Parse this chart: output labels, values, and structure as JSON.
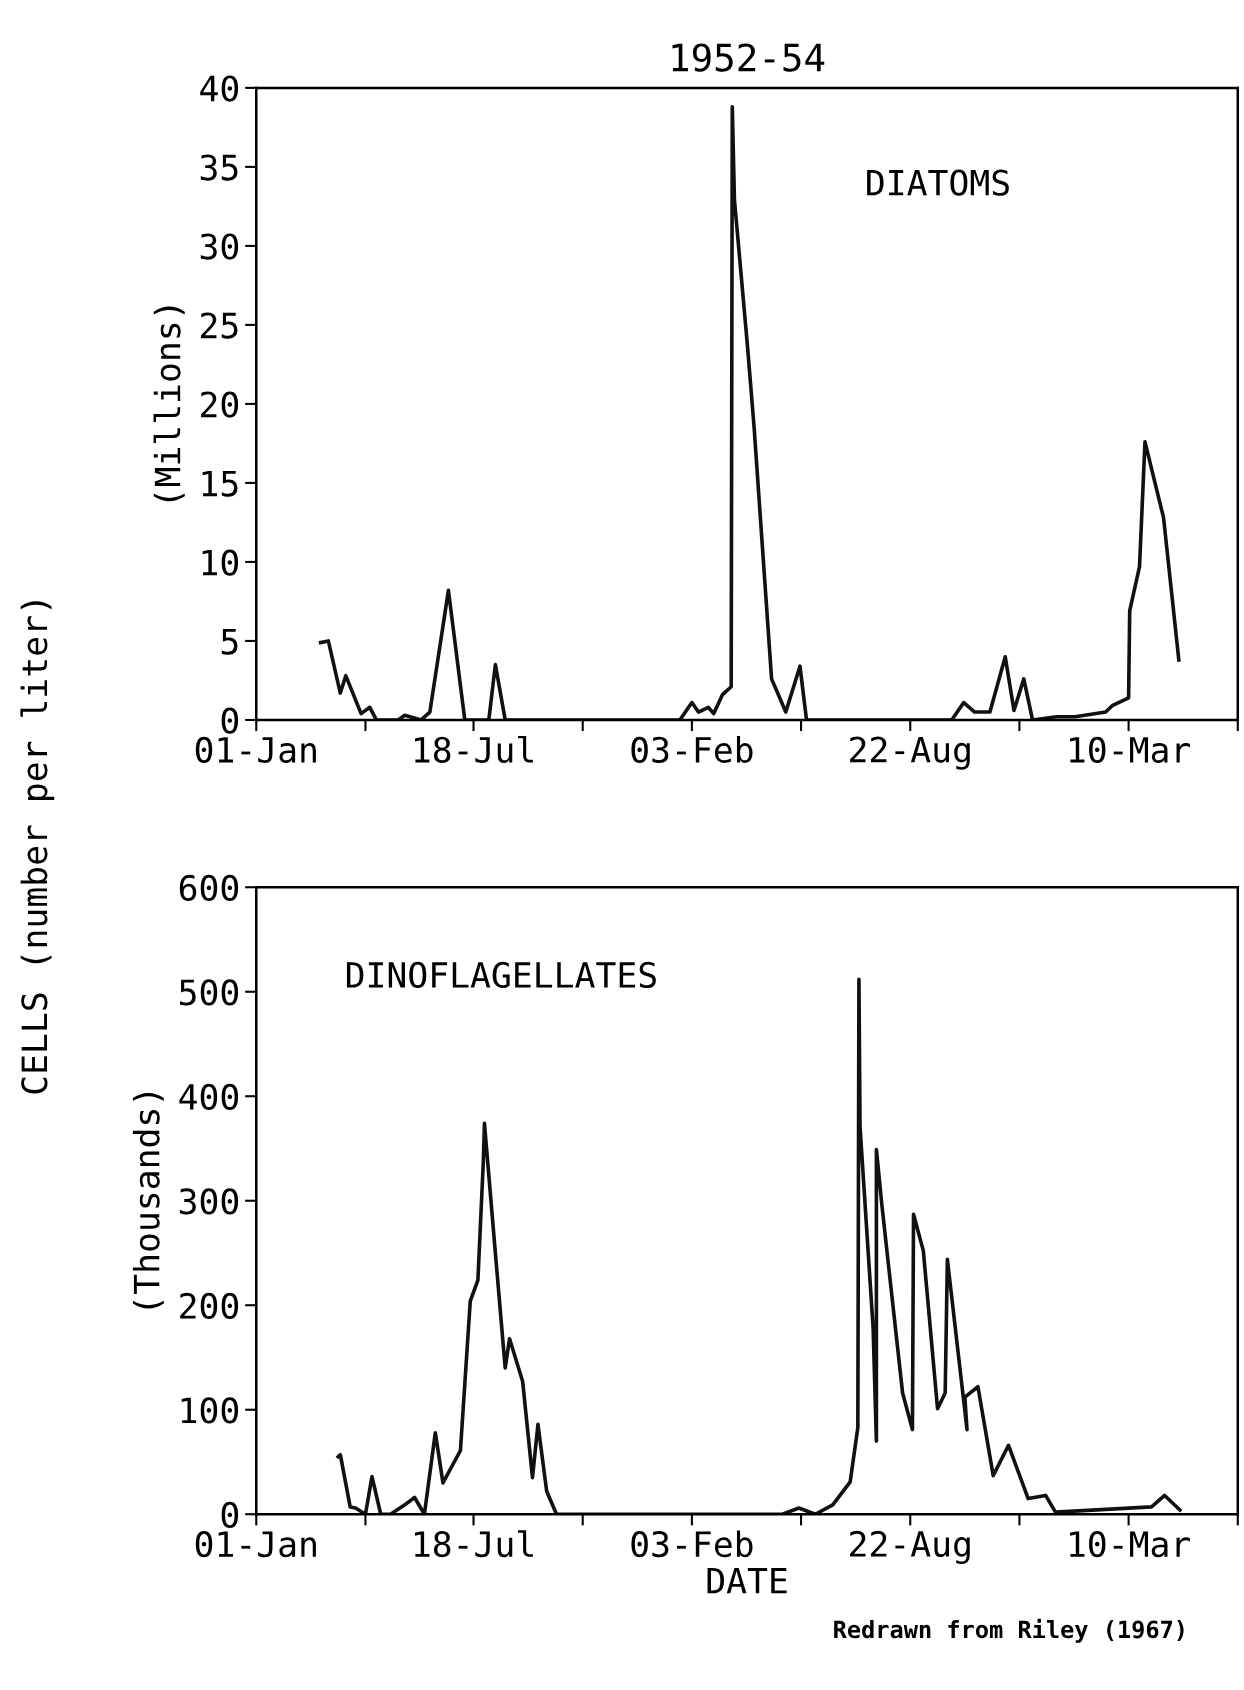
{
  "chart_data": [
    {
      "type": "line",
      "title": "1952-54",
      "ylabel": "(Millions)",
      "annotations": [
        "DIATOMS",
        "CELLS (number per liter)"
      ],
      "series": [
        {
          "color": "#111111",
          "x": [
            "1952-02-29",
            "1952-03-07",
            "1952-03-18",
            "1952-03-23",
            "1952-04-06",
            "1952-04-14",
            "1952-04-20",
            "1952-05-10",
            "1952-05-16",
            "1952-05-31",
            "1952-06-08",
            "1952-06-25",
            "1952-07-10",
            "1952-08-01",
            "1952-08-07",
            "1952-08-16",
            "1953-01-23",
            "1953-02-03",
            "1953-02-09",
            "1953-02-18",
            "1953-02-23",
            "1953-03-03",
            "1953-03-11",
            "1953-03-12",
            "1953-03-14",
            "1953-03-26",
            "1953-04-01",
            "1953-04-17",
            "1953-04-30",
            "1953-05-13",
            "1953-05-19",
            "1953-09-29",
            "1953-10-10",
            "1953-10-20",
            "1953-11-03",
            "1953-11-17",
            "1953-11-25",
            "1953-12-04",
            "1953-12-12",
            "1954-01-03",
            "1954-01-20",
            "1954-02-17",
            "1954-02-23",
            "1954-03-10",
            "1954-03-11",
            "1954-03-20",
            "1954-03-25",
            "1954-04-11",
            "1954-04-25"
          ],
          "values": [
            4.9,
            5.0,
            1.7,
            2.8,
            0.4,
            0.8,
            0,
            0,
            0.3,
            0,
            0.5,
            8.2,
            0,
            0,
            3.5,
            0,
            0,
            1.1,
            0.5,
            0.8,
            0.4,
            1.6,
            2.1,
            38.8,
            32.9,
            23.6,
            18.5,
            2.6,
            0.5,
            3.4,
            0,
            0,
            1.1,
            0.5,
            0.5,
            4.0,
            0.6,
            2.6,
            0,
            0.2,
            0.2,
            0.5,
            0.9,
            1.4,
            6.9,
            9.7,
            17.6,
            12.8,
            3.8
          ]
        }
      ],
      "xlim": [
        "1952-01-01",
        "1954-06-18"
      ],
      "xticks": [
        {
          "value": "1952-01-01",
          "label": "01-Jan"
        },
        {
          "value": "1952-04-10",
          "label": null
        },
        {
          "value": "1952-07-18",
          "label": "18-Jul"
        },
        {
          "value": "1952-10-26",
          "label": null
        },
        {
          "value": "1953-02-03",
          "label": "03-Feb"
        },
        {
          "value": "1953-05-14",
          "label": null
        },
        {
          "value": "1953-08-22",
          "label": "22-Aug"
        },
        {
          "value": "1953-11-30",
          "label": null
        },
        {
          "value": "1954-03-10",
          "label": "10-Mar"
        },
        {
          "value": "1954-06-18",
          "label": null
        }
      ],
      "ylim": [
        0,
        40
      ],
      "yticks": [
        0,
        5,
        10,
        15,
        20,
        25,
        30,
        35,
        40
      ],
      "line_style": "solid"
    },
    {
      "type": "line",
      "xlabel": "DATE",
      "ylabel": "(Thousands)",
      "annotations": [
        "DINOFLAGELLATES",
        "Redrawn from Riley (1967)"
      ],
      "series": [
        {
          "color": "#111111",
          "x": [
            "1952-03-16",
            "1952-03-18",
            "1952-03-27",
            "1952-04-01",
            "1952-04-10",
            "1952-04-16",
            "1952-04-24",
            "1952-05-03",
            "1952-05-16",
            "1952-05-25",
            "1952-06-03",
            "1952-06-13",
            "1952-06-20",
            "1952-07-06",
            "1952-07-15",
            "1952-07-22",
            "1952-07-27",
            "1952-07-28",
            "1952-08-07",
            "1952-08-16",
            "1952-08-20",
            "1952-09-01",
            "1952-09-10",
            "1952-09-15",
            "1952-09-23",
            "1952-10-02",
            "1953-04-27",
            "1953-05-12",
            "1953-05-27",
            "1953-06-12",
            "1953-06-28",
            "1953-07-05",
            "1953-07-06",
            "1953-07-07",
            "1953-07-19",
            "1953-07-22",
            "1953-07-22",
            "1953-07-27",
            "1953-08-15",
            "1953-08-24",
            "1953-08-25",
            "1953-09-03",
            "1953-09-16",
            "1953-09-23",
            "1953-09-25",
            "1953-10-13",
            "1953-10-11",
            "1953-10-23",
            "1953-11-06",
            "1953-11-20",
            "1953-12-08",
            "1953-12-24",
            "1954-01-02",
            "1954-03-31",
            "1954-04-12",
            "1954-04-26"
          ],
          "values": [
            55,
            57,
            7,
            6,
            0,
            36,
            0,
            0,
            9,
            16,
            0,
            78,
            30,
            61,
            204,
            224,
            338,
            374,
            250,
            140,
            168,
            127,
            35,
            86,
            22,
            0,
            0,
            6,
            0,
            9,
            31,
            83,
            512,
            371,
            178,
            70,
            349,
            296,
            116,
            81,
            287,
            252,
            101,
            116,
            244,
            81,
            112,
            122,
            37,
            66,
            15,
            18,
            2,
            7,
            18,
            4
          ]
        }
      ],
      "xlim": [
        "1952-01-01",
        "1954-06-18"
      ],
      "xticks": [
        {
          "value": "1952-01-01",
          "label": "01-Jan"
        },
        {
          "value": "1952-04-10",
          "label": null
        },
        {
          "value": "1952-07-18",
          "label": "18-Jul"
        },
        {
          "value": "1952-10-26",
          "label": null
        },
        {
          "value": "1953-02-03",
          "label": "03-Feb"
        },
        {
          "value": "1953-05-14",
          "label": null
        },
        {
          "value": "1953-08-22",
          "label": "22-Aug"
        },
        {
          "value": "1953-11-30",
          "label": null
        },
        {
          "value": "1954-03-10",
          "label": "10-Mar"
        },
        {
          "value": "1954-06-18",
          "label": null
        }
      ],
      "ylim": [
        0,
        600
      ],
      "yticks": [
        0,
        100,
        200,
        300,
        400,
        500,
        600
      ],
      "line_style": "solid"
    }
  ]
}
